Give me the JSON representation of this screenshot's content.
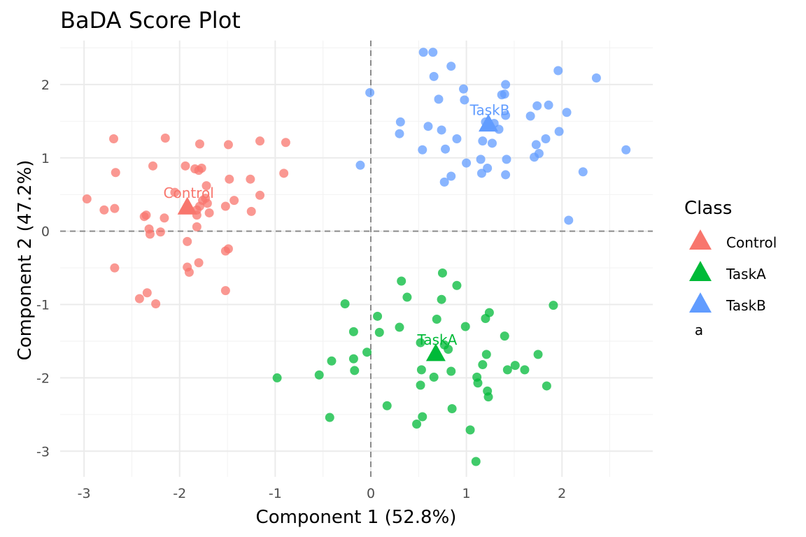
{
  "chart_data": {
    "type": "scatter",
    "title": "BaDA Score Plot",
    "xlabel": "Component 1 (52.8%)",
    "ylabel": "Component 2 (47.2%)",
    "xlim": [
      -3.25,
      2.95
    ],
    "ylim": [
      -3.35,
      2.6
    ],
    "xticks": [
      -3,
      -2,
      -1,
      0,
      1,
      2
    ],
    "yticks": [
      -3,
      -2,
      -1,
      0,
      1,
      2
    ],
    "grid": true,
    "reference_lines": {
      "x": 0,
      "y": 0,
      "style": "dashed"
    },
    "legend": {
      "title": "Class",
      "position": "right",
      "extra_label": "a"
    },
    "colors": {
      "Control": "#F8766D",
      "TaskA": "#00BA38",
      "TaskB": "#619CFF"
    },
    "series": [
      {
        "name": "Control",
        "centroid": [
          -1.92,
          0.32
        ],
        "points": [
          [
            -2.97,
            0.44
          ],
          [
            -2.79,
            0.29
          ],
          [
            -2.68,
            0.31
          ],
          [
            -2.69,
            1.26
          ],
          [
            -2.67,
            0.8
          ],
          [
            -2.68,
            -0.5
          ],
          [
            -2.37,
            0.2
          ],
          [
            -2.35,
            0.22
          ],
          [
            -2.32,
            0.03
          ],
          [
            -2.31,
            -0.04
          ],
          [
            -2.28,
            0.89
          ],
          [
            -2.15,
            1.27
          ],
          [
            -2.16,
            0.18
          ],
          [
            -2.2,
            -0.01
          ],
          [
            -2.05,
            0.53
          ],
          [
            -1.94,
            0.89
          ],
          [
            -1.84,
            0.85
          ],
          [
            -1.8,
            0.83
          ],
          [
            -1.77,
            0.86
          ],
          [
            -1.79,
            1.19
          ],
          [
            -1.72,
            0.62
          ],
          [
            -1.73,
            0.45
          ],
          [
            -1.76,
            0.42
          ],
          [
            -1.71,
            0.38
          ],
          [
            -1.79,
            0.34
          ],
          [
            -1.82,
            0.29
          ],
          [
            -1.82,
            0.22
          ],
          [
            -1.69,
            0.25
          ],
          [
            -1.82,
            0.06
          ],
          [
            -1.92,
            -0.14
          ],
          [
            -1.8,
            -0.43
          ],
          [
            -1.92,
            -0.49
          ],
          [
            -1.9,
            -0.56
          ],
          [
            -2.34,
            -0.84
          ],
          [
            -2.42,
            -0.92
          ],
          [
            -2.25,
            -0.99
          ],
          [
            -1.52,
            0.34
          ],
          [
            -1.43,
            0.42
          ],
          [
            -1.48,
            0.71
          ],
          [
            -1.49,
            1.18
          ],
          [
            -1.26,
            0.71
          ],
          [
            -1.25,
            0.27
          ],
          [
            -1.16,
            1.23
          ],
          [
            -1.16,
            0.49
          ],
          [
            -0.89,
            1.21
          ],
          [
            -0.91,
            0.79
          ],
          [
            -1.49,
            -0.24
          ],
          [
            -1.52,
            -0.27
          ],
          [
            -1.52,
            -0.81
          ]
        ]
      },
      {
        "name": "TaskA",
        "centroid": [
          0.68,
          -1.68
        ],
        "points": [
          [
            -0.98,
            -2.0
          ],
          [
            -0.54,
            -1.96
          ],
          [
            -0.41,
            -1.77
          ],
          [
            -0.43,
            -2.54
          ],
          [
            -0.27,
            -0.99
          ],
          [
            -0.18,
            -1.37
          ],
          [
            -0.18,
            -1.74
          ],
          [
            -0.17,
            -1.9
          ],
          [
            -0.04,
            -1.65
          ],
          [
            0.07,
            -1.16
          ],
          [
            0.09,
            -1.38
          ],
          [
            0.17,
            -2.38
          ],
          [
            0.3,
            -1.31
          ],
          [
            0.32,
            -0.68
          ],
          [
            0.38,
            -0.9
          ],
          [
            0.52,
            -1.52
          ],
          [
            0.53,
            -1.89
          ],
          [
            0.52,
            -2.1
          ],
          [
            0.54,
            -2.53
          ],
          [
            0.48,
            -2.63
          ],
          [
            0.66,
            -1.99
          ],
          [
            0.69,
            -1.2
          ],
          [
            0.74,
            -0.93
          ],
          [
            0.75,
            -0.57
          ],
          [
            0.77,
            -1.55
          ],
          [
            0.81,
            -1.61
          ],
          [
            0.84,
            -1.91
          ],
          [
            0.85,
            -2.42
          ],
          [
            0.9,
            -0.74
          ],
          [
            0.99,
            -1.3
          ],
          [
            1.04,
            -2.71
          ],
          [
            1.1,
            -3.14
          ],
          [
            1.11,
            -1.99
          ],
          [
            1.12,
            -2.07
          ],
          [
            1.17,
            -1.82
          ],
          [
            1.2,
            -1.19
          ],
          [
            1.24,
            -1.11
          ],
          [
            1.21,
            -1.68
          ],
          [
            1.22,
            -2.18
          ],
          [
            1.23,
            -2.26
          ],
          [
            1.4,
            -1.43
          ],
          [
            1.43,
            -1.89
          ],
          [
            1.51,
            -1.83
          ],
          [
            1.61,
            -1.89
          ],
          [
            1.75,
            -1.68
          ],
          [
            1.84,
            -2.11
          ],
          [
            1.91,
            -1.01
          ]
        ]
      },
      {
        "name": "TaskB",
        "centroid": [
          1.23,
          1.45
        ],
        "points": [
          [
            -0.01,
            1.89
          ],
          [
            -0.11,
            0.9
          ],
          [
            0.3,
            1.33
          ],
          [
            0.31,
            1.49
          ],
          [
            0.54,
            1.11
          ],
          [
            0.55,
            2.44
          ],
          [
            0.65,
            2.44
          ],
          [
            0.66,
            2.11
          ],
          [
            0.6,
            1.43
          ],
          [
            0.71,
            1.8
          ],
          [
            0.74,
            1.38
          ],
          [
            0.78,
            1.12
          ],
          [
            0.77,
            0.67
          ],
          [
            0.84,
            0.75
          ],
          [
            0.84,
            2.25
          ],
          [
            0.9,
            1.26
          ],
          [
            0.97,
            1.94
          ],
          [
            0.98,
            1.79
          ],
          [
            1.0,
            0.93
          ],
          [
            1.15,
            0.98
          ],
          [
            1.16,
            0.79
          ],
          [
            1.17,
            1.23
          ],
          [
            1.2,
            1.49
          ],
          [
            1.22,
            0.86
          ],
          [
            1.27,
            1.2
          ],
          [
            1.29,
            1.47
          ],
          [
            1.34,
            1.39
          ],
          [
            1.37,
            1.86
          ],
          [
            1.41,
            2.0
          ],
          [
            1.4,
            1.87
          ],
          [
            1.41,
            1.58
          ],
          [
            1.41,
            0.77
          ],
          [
            1.42,
            0.98
          ],
          [
            1.67,
            1.57
          ],
          [
            1.71,
            1.01
          ],
          [
            1.73,
            1.18
          ],
          [
            1.74,
            1.71
          ],
          [
            1.76,
            1.06
          ],
          [
            1.83,
            1.26
          ],
          [
            1.86,
            1.72
          ],
          [
            1.96,
            2.19
          ],
          [
            1.97,
            1.36
          ],
          [
            2.05,
            1.62
          ],
          [
            2.07,
            0.15
          ],
          [
            2.22,
            0.81
          ],
          [
            2.36,
            2.09
          ],
          [
            2.67,
            1.11
          ]
        ]
      }
    ]
  }
}
